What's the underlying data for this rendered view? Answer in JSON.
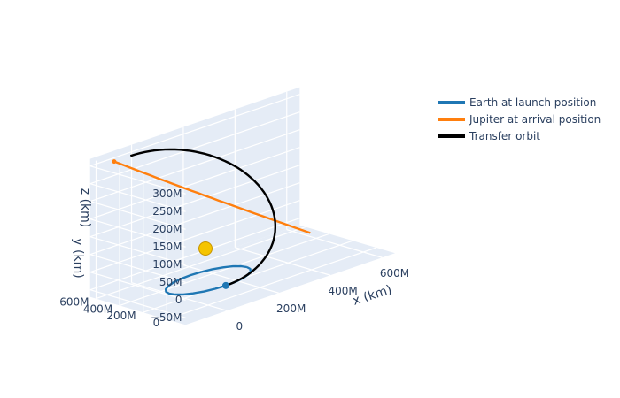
{
  "chart_data": {
    "type": "line",
    "title": "",
    "axes": {
      "x": {
        "label": "x (km)",
        "ticks": [
          {
            "value": 0,
            "label": "0"
          },
          {
            "value": 200000000,
            "label": "200M"
          },
          {
            "value": 400000000,
            "label": "400M"
          },
          {
            "value": 600000000,
            "label": "600M"
          }
        ],
        "range": [
          -160000000,
          650000000
        ]
      },
      "y": {
        "label": "y (km)",
        "ticks": [
          {
            "value": 0,
            "label": "0"
          },
          {
            "value": 200000000,
            "label": "200M"
          },
          {
            "value": 400000000,
            "label": "400M"
          },
          {
            "value": 600000000,
            "label": "600M"
          }
        ],
        "range": [
          -160000000,
          650000000
        ]
      },
      "z": {
        "label": "z (km)",
        "ticks": [
          {
            "value": -50000000,
            "label": "−50M"
          },
          {
            "value": 0,
            "label": "0"
          },
          {
            "value": 50000000,
            "label": "50M"
          },
          {
            "value": 100000000,
            "label": "100M"
          },
          {
            "value": 150000000,
            "label": "150M"
          },
          {
            "value": 200000000,
            "label": "200M"
          },
          {
            "value": 250000000,
            "label": "250M"
          },
          {
            "value": 300000000,
            "label": "300M"
          }
        ],
        "range": [
          -70000000,
          320000000
        ]
      }
    },
    "series": [
      {
        "name": "Earth at launch position",
        "color": "#1f77b4",
        "kind": "orbit",
        "orbit_radius": 150000000,
        "marker": [
          0,
          -150000000,
          0
        ]
      },
      {
        "name": "Jupiter at arrival position",
        "color": "#ff7f0e",
        "kind": "arc",
        "points": [
          [
            -90000000,
            600000000,
            300000000
          ],
          [
            600000000,
            450000000,
            -60000000
          ]
        ],
        "marker": [
          -90000000,
          600000000,
          300000000
        ]
      },
      {
        "name": "Transfer orbit",
        "color": "#000000",
        "kind": "transfer",
        "start": [
          0,
          -150000000,
          0
        ],
        "end": [
          -90000000,
          600000000,
          300000000
        ]
      }
    ],
    "sun": {
      "position": [
        0,
        0,
        0
      ],
      "color": "#f5c400"
    },
    "legend_placement": "top-right",
    "grid": true
  }
}
